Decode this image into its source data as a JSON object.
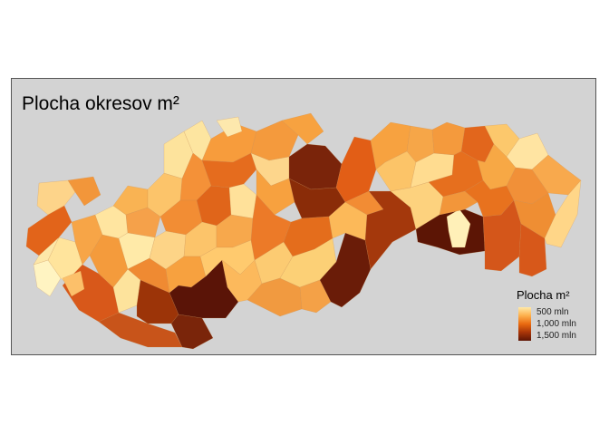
{
  "map": {
    "title": "Plocha okresov m²",
    "legend": {
      "title": "Plocha m²",
      "labels": [
        "500 mln",
        "1,000 mln",
        "1,500 mln"
      ]
    },
    "colors": {
      "background": "#d3d3d3",
      "scale_low": "#ffe9a8",
      "scale_mid": "#fdb04c",
      "scale_high": "#e96a10",
      "scale_max": "#5e1505"
    }
  }
}
